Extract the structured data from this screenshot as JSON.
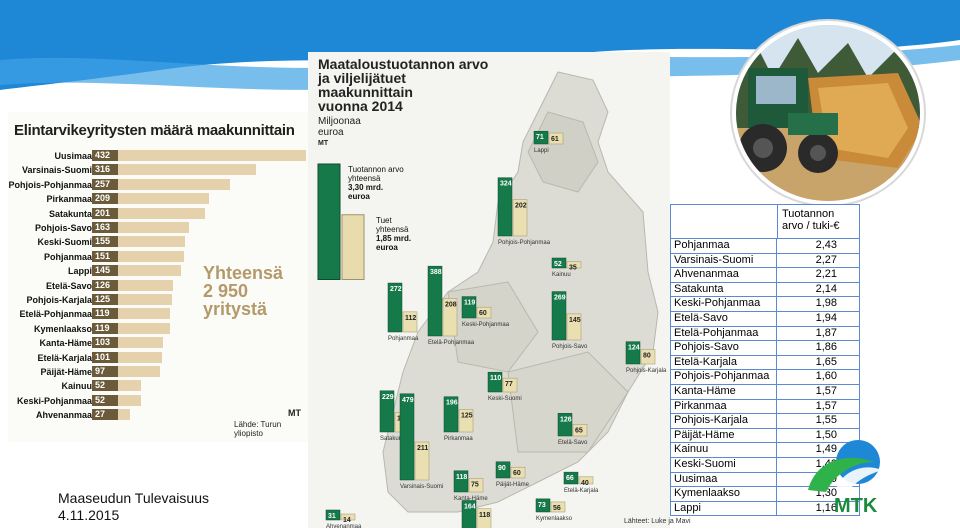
{
  "slide": {
    "footer": {
      "line1": "Maaseudun Tulevaisuus",
      "line2": "4.11.2015"
    },
    "logo": {
      "name": "mtk-logo",
      "text": "MTK"
    },
    "colors": {
      "blue": "#1e88d6",
      "green": "#2a9d5a",
      "dark_green": "#16794a",
      "mtk_green": "#1b8a3c"
    }
  },
  "left_chart": {
    "title": "Elintarvikeyritysten määrä maakunnittain",
    "total_line1": "Yhteensä",
    "total_line2": "2 950",
    "total_line3": "yritystä",
    "mt": "MT",
    "source": "Lähde: Turun yliopisto",
    "rows": [
      {
        "name": "Uusimaa",
        "value": 432
      },
      {
        "name": "Varsinais-Suomi",
        "value": 316
      },
      {
        "name": "Pohjois-Pohjanmaa",
        "value": 257
      },
      {
        "name": "Pirkanmaa",
        "value": 209
      },
      {
        "name": "Satakunta",
        "value": 201
      },
      {
        "name": "Pohjois-Savo",
        "value": 163
      },
      {
        "name": "Keski-Suomi",
        "value": 155
      },
      {
        "name": "Pohjanmaa",
        "value": 151
      },
      {
        "name": "Lappi",
        "value": 145
      },
      {
        "name": "Etelä-Savo",
        "value": 126
      },
      {
        "name": "Pohjois-Karjala",
        "value": 125
      },
      {
        "name": "Etelä-Pohjanmaa",
        "value": 119
      },
      {
        "name": "Kymenlaakso",
        "value": 119
      },
      {
        "name": "Kanta-Häme",
        "value": 103
      },
      {
        "name": "Etelä-Karjala",
        "value": 101
      },
      {
        "name": "Päijät-Häme",
        "value": 97
      },
      {
        "name": "Kainuu",
        "value": 52
      },
      {
        "name": "Keski-Pohjanmaa",
        "value": 52
      },
      {
        "name": "Ahvenanmaa",
        "value": 27
      }
    ]
  },
  "map": {
    "title_line1": "Maataloustuotannon arvo",
    "title_line2": "ja viljelijätuet",
    "title_line3": "maakunnittain",
    "title_line4": "vuonna 2014",
    "unit_line1": "Miljoonaa",
    "unit_line2": "euroa",
    "mt": "MT",
    "legend_production": "Tuotannon arvo yhteensä 3,30 mrd. euroa",
    "legend_support": "Tuet yhteensä 1,85 mrd. euroa",
    "legend_prod_lines": [
      "Tuotannon arvo",
      "yhteensä",
      "3,30 mrd.",
      "euroa"
    ],
    "legend_supp_lines": [
      "Tuet",
      "yhteensä",
      "1,85 mrd.",
      "euroa"
    ],
    "legend_values": {
      "production": 3.3,
      "support": 1.85
    },
    "source": "Lähteet: Luke ja Mavi",
    "regions": [
      {
        "name": "Lappi",
        "production": 71,
        "support": 61
      },
      {
        "name": "Pohjois-Pohjanmaa",
        "production": 324,
        "support": 202
      },
      {
        "name": "Kainuu",
        "production": 52,
        "support": 35
      },
      {
        "name": "Keski-Pohjanmaa",
        "production": 119,
        "support": 60
      },
      {
        "name": "Pohjanmaa",
        "production": 272,
        "support": 112
      },
      {
        "name": "Etelä-Pohjanmaa",
        "production": 388,
        "support": 208
      },
      {
        "name": "Pohjois-Savo",
        "production": 269,
        "support": 145
      },
      {
        "name": "Pohjois-Karjala",
        "production": 124,
        "support": 80
      },
      {
        "name": "Keski-Suomi",
        "production": 110,
        "support": 77
      },
      {
        "name": "Satakunta",
        "production": 229,
        "support": 107
      },
      {
        "name": "Pirkanmaa",
        "production": 196,
        "support": 125
      },
      {
        "name": "Etelä-Savo",
        "production": 126,
        "support": 65
      },
      {
        "name": "Päijät-Häme",
        "production": 90,
        "support": 60
      },
      {
        "name": "Kanta-Häme",
        "production": 118,
        "support": 75
      },
      {
        "name": "Etelä-Karjala",
        "production": 66,
        "support": 40
      },
      {
        "name": "Kymenlaakso",
        "production": 73,
        "support": 56
      },
      {
        "name": "Varsinais-Suomi",
        "production": 479,
        "support": 211
      },
      {
        "name": "Uusimaa",
        "production": 164,
        "support": 118
      },
      {
        "name": "Ahvenanmaa",
        "production": 31,
        "support": 14
      }
    ]
  },
  "table": {
    "header_line1": "Tuotannon",
    "header_line2": "arvo / tuki-€",
    "rows": [
      {
        "region": "Pohjanmaa",
        "ratio": "2,43"
      },
      {
        "region": "Varsinais-Suomi",
        "ratio": "2,27"
      },
      {
        "region": "Ahvenanmaa",
        "ratio": "2,21"
      },
      {
        "region": "Satakunta",
        "ratio": "2,14"
      },
      {
        "region": "Keski-Pohjanmaa",
        "ratio": "1,98"
      },
      {
        "region": "Etelä-Savo",
        "ratio": "1,94"
      },
      {
        "region": "Etelä-Pohjanmaa",
        "ratio": "1,87"
      },
      {
        "region": "Pohjois-Savo",
        "ratio": "1,86"
      },
      {
        "region": "Etelä-Karjala",
        "ratio": "1,65"
      },
      {
        "region": "Pohjois-Pohjanmaa",
        "ratio": "1,60"
      },
      {
        "region": "Kanta-Häme",
        "ratio": "1,57"
      },
      {
        "region": "Pirkanmaa",
        "ratio": "1,57"
      },
      {
        "region": "Pohjois-Karjala",
        "ratio": "1,55"
      },
      {
        "region": "Päijät-Häme",
        "ratio": "1,50"
      },
      {
        "region": "Kainuu",
        "ratio": "1,49"
      },
      {
        "region": "Keski-Suomi",
        "ratio": "1,43"
      },
      {
        "region": "Uusimaa",
        "ratio": "1,39"
      },
      {
        "region": "Kymenlaakso",
        "ratio": "1,30"
      },
      {
        "region": "Lappi",
        "ratio": "1,16"
      }
    ]
  }
}
